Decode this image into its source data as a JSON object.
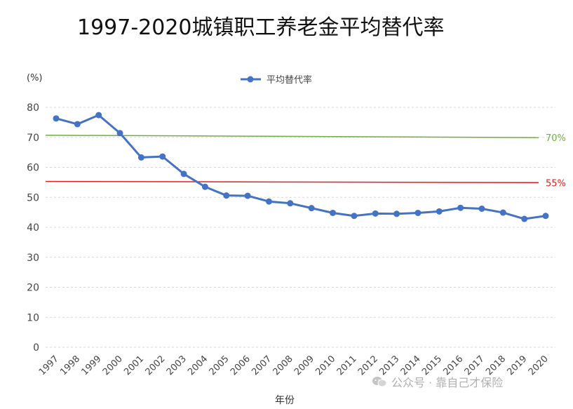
{
  "chart_data": {
    "type": "line",
    "title": "1997-2020城镇职工养老金平均替代率",
    "xlabel": "年份",
    "ylabel": "(%)",
    "ylim": [
      0,
      80
    ],
    "yticks": [
      0,
      10,
      20,
      30,
      40,
      50,
      60,
      70,
      80
    ],
    "legend_position": "top-center",
    "grid": true,
    "categories": [
      "1997",
      "1998",
      "1999",
      "2000",
      "2001",
      "2002",
      "2003",
      "2004",
      "2005",
      "2006",
      "2007",
      "2008",
      "2009",
      "2010",
      "2011",
      "2012",
      "2013",
      "2014",
      "2015",
      "2016",
      "2017",
      "2018",
      "2019",
      "2020"
    ],
    "series": [
      {
        "name": "平均替代率",
        "color": "#4472c4",
        "values": [
          76.3,
          74.4,
          77.4,
          71.4,
          63.3,
          63.6,
          57.8,
          53.5,
          50.6,
          50.5,
          48.6,
          48.0,
          46.4,
          44.8,
          43.8,
          44.6,
          44.5,
          44.8,
          45.3,
          46.5,
          46.2,
          44.9,
          42.8,
          43.8
        ]
      }
    ],
    "reference_lines": [
      {
        "label": "70%",
        "start_value": 70.7,
        "end_value": 69.9,
        "color": "#70ad47"
      },
      {
        "label": "55%",
        "start_value": 55.3,
        "end_value": 54.9,
        "color": "#e02020"
      }
    ]
  },
  "watermark": {
    "text": "公众号 · 靠自己才保险",
    "icon": "wechat-icon"
  }
}
